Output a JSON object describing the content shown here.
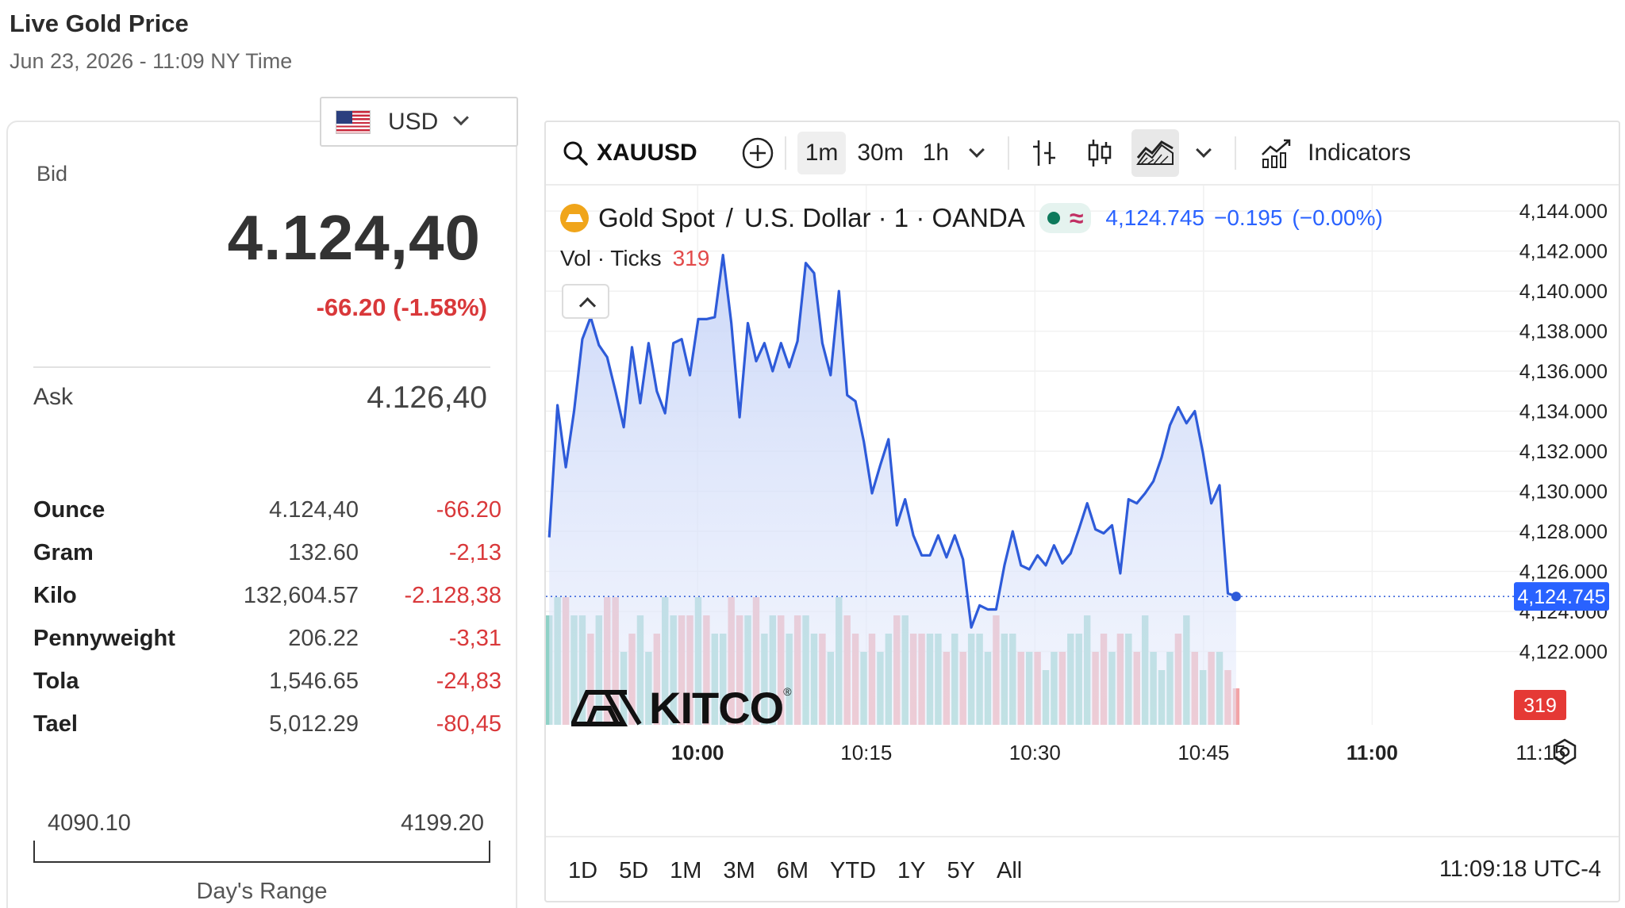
{
  "header": {
    "title": "Live Gold Price",
    "subtitle": "Jun 23, 2026 - 11:09 NY Time"
  },
  "currency": {
    "label": "USD",
    "flag_icon": "us-flag-icon"
  },
  "quote": {
    "bid_label": "Bid",
    "bid_value": "4.124,40",
    "bid_change": "-66.20 (-1.58%)",
    "ask_label": "Ask",
    "ask_value": "4.126,40",
    "change_color": "#d9383a"
  },
  "units": [
    {
      "unit": "Ounce",
      "price": "4.124,40",
      "change": "-66.20"
    },
    {
      "unit": "Gram",
      "price": "132.60",
      "change": "-2,13"
    },
    {
      "unit": "Kilo",
      "price": "132,604.57",
      "change": "-2.128,38"
    },
    {
      "unit": "Pennyweight",
      "price": "206.22",
      "change": "-3,31"
    },
    {
      "unit": "Tola",
      "price": "1,546.65",
      "change": "-24,83"
    },
    {
      "unit": "Tael",
      "price": "5,012.29",
      "change": "-80,45"
    }
  ],
  "range": {
    "low": "4090.10",
    "high": "4199.20",
    "label": "Day's Range"
  },
  "toolbar": {
    "symbol": "XAUUSD",
    "intervals": [
      "1m",
      "30m",
      "1h"
    ],
    "active_interval": "1m",
    "indicators_label": "Indicators"
  },
  "legend": {
    "instrument": "Gold Spot",
    "sep": "/",
    "quote_currency": "U.S. Dollar · 1 · OANDA",
    "last": "4,124.745",
    "change": "−0.195",
    "change_pct": "(−0.00%)",
    "vol_label": "Vol · Ticks",
    "vol_value": "319"
  },
  "watermark": {
    "text": "KITCO",
    "reg": "®"
  },
  "periods": [
    "1D",
    "5D",
    "1M",
    "3M",
    "6M",
    "YTD",
    "1Y",
    "5Y",
    "All"
  ],
  "clock": "11:09:18 UTC-4",
  "chart_data": {
    "type": "line",
    "title": "",
    "y_ticks": [
      "4,144.000",
      "4,142.000",
      "4,140.000",
      "4,138.000",
      "4,136.000",
      "4,134.000",
      "4,132.000",
      "4,130.000",
      "4,128.000",
      "4,126.000",
      "4,124.000",
      "4,122.000"
    ],
    "ylim": [
      4121.9,
      4144.4
    ],
    "x_ticks": [
      {
        "label": "10:00",
        "minute": 600,
        "bold": true
      },
      {
        "label": "10:15",
        "minute": 615,
        "bold": false
      },
      {
        "label": "10:30",
        "minute": 630,
        "bold": false
      },
      {
        "label": "10:45",
        "minute": 645,
        "bold": false
      },
      {
        "label": "11:00",
        "minute": 660,
        "bold": true
      },
      {
        "label": "11:15",
        "minute": 675,
        "bold": false
      }
    ],
    "xlim": [
      586.5,
      681.5
    ],
    "last_price_label": "4,124.745",
    "last_price": 4124.745,
    "last_vol_label": "319",
    "colors": {
      "line": "#2e5bd9",
      "up_vol": "#8fd1c6",
      "down_vol": "#f2a3a6",
      "last_tag": "#2962ff",
      "vol_tag": "#e53935"
    },
    "series": [
      {
        "values": [
          4127.7,
          4134.3,
          4131.2,
          4134.0,
          4137.6,
          4138.7,
          4137.3,
          4136.7,
          4135.0,
          4133.2,
          4137.2,
          4134.4,
          4137.4,
          4135.0,
          4133.9,
          4137.4,
          4137.6,
          4135.8,
          4138.6,
          4138.6,
          4138.7,
          4141.8,
          4138.4,
          4133.7,
          4138.4,
          4136.5,
          4137.4,
          4136.0,
          4137.4,
          4136.2,
          4137.5,
          4141.4,
          4140.9,
          4137.4,
          4135.8,
          4140.0,
          4134.8,
          4134.5,
          4132.5,
          4129.9,
          4131.3,
          4132.6,
          4128.3,
          4129.6,
          4127.8,
          4126.8,
          4126.8,
          4127.8,
          4126.7,
          4127.8,
          4126.6,
          4123.2,
          4124.3,
          4124.1,
          4124.1,
          4126.3,
          4128.0,
          4126.3,
          4126.1,
          4126.8,
          4126.3,
          4127.3,
          4126.4,
          4126.9,
          4128.1,
          4129.4,
          4128.1,
          4127.9,
          4128.3,
          4125.9,
          4129.6,
          4129.4,
          4129.9,
          4130.5,
          4131.7,
          4133.3,
          4134.2,
          4133.4,
          4134.0,
          4131.9,
          4129.4,
          4130.3,
          4124.9,
          4124.745
        ]
      },
      {
        "name": "Vol · Ticks",
        "values": [
          6,
          7,
          7,
          6,
          6,
          5,
          6,
          7,
          7,
          4,
          5,
          6,
          4,
          5,
          7,
          6,
          6,
          6,
          7,
          6,
          5,
          5,
          7,
          6,
          6,
          7,
          5,
          6,
          6,
          5,
          6,
          6,
          5,
          5,
          4,
          7,
          6,
          5,
          4,
          5,
          4,
          5,
          6,
          6,
          5,
          5,
          5,
          5,
          4,
          5,
          4,
          5,
          5,
          4,
          6,
          5,
          5,
          4,
          4,
          4,
          3,
          4,
          4,
          5,
          5,
          6,
          4,
          5,
          4,
          5,
          5,
          4,
          6,
          4,
          3,
          4,
          5,
          6,
          4,
          3,
          4,
          4,
          3,
          2
        ],
        "directions": [
          "u",
          "u",
          "d",
          "u",
          "u",
          "d",
          "u",
          "d",
          "d",
          "u",
          "d",
          "u",
          "u",
          "d",
          "u",
          "u",
          "d",
          "d",
          "u",
          "d",
          "u",
          "u",
          "d",
          "d",
          "u",
          "d",
          "u",
          "u",
          "d",
          "u",
          "d",
          "u",
          "u",
          "d",
          "u",
          "u",
          "d",
          "d",
          "u",
          "d",
          "u",
          "u",
          "d",
          "u",
          "d",
          "d",
          "u",
          "u",
          "d",
          "u",
          "d",
          "u",
          "u",
          "u",
          "d",
          "u",
          "u",
          "d",
          "u",
          "d",
          "u",
          "u",
          "d",
          "u",
          "u",
          "u",
          "d",
          "d",
          "u",
          "d",
          "u",
          "d",
          "u",
          "u",
          "u",
          "u",
          "d",
          "u",
          "d",
          "u",
          "d",
          "u",
          "d",
          "d"
        ],
        "vmax": 10
      }
    ]
  }
}
